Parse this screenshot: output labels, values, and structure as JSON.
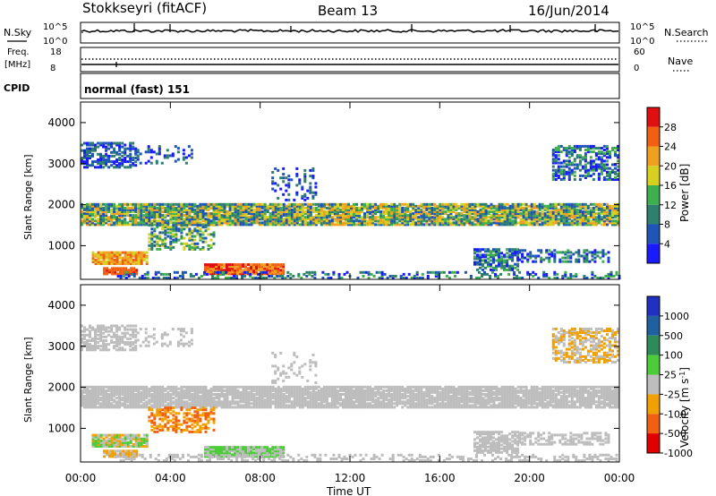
{
  "header": {
    "station": "Stokkseyri (fitACF)",
    "beam": "Beam 13",
    "date": "16/Jun/2014"
  },
  "strip_labels": {
    "nsky": "N.Sky",
    "nsearch": "N.Search",
    "freq": "Freq.",
    "mhz": "[MHz]",
    "nave": "Nave",
    "cpid": "CPID",
    "mode": "normal (fast) 151",
    "nsky_top": "10^5",
    "nsky_bot": "10^0",
    "nsearch_top": "10^5",
    "nsearch_bot": "10^0",
    "freq_top": "18",
    "freq_bot": "8",
    "nave_top": "60",
    "nave_bot": "0"
  },
  "colorbars": {
    "power_title": "Power [dB]",
    "velocity_title": "Velocity [m s",
    "velocity_exp": "-1",
    "velocity_close": "]"
  },
  "axes": {
    "ylabel": "Slant Range [km]",
    "xlabel": "Time UT"
  },
  "chart_data": [
    {
      "type": "heatmap",
      "name": "power",
      "x": [
        "00:00",
        "04:00",
        "08:00",
        "12:00",
        "16:00",
        "20:00",
        "00:00"
      ],
      "xlim": [
        0,
        24
      ],
      "ylim": [
        180,
        4500
      ],
      "yticks": [
        1000,
        2000,
        3000,
        4000
      ],
      "colorbar_ticks": [
        4,
        8,
        12,
        16,
        20,
        24,
        28
      ],
      "colorbar_colors": [
        "#1a1aff",
        "#1f55b7",
        "#2f7f6f",
        "#3fae4f",
        "#d8d020",
        "#f0a020",
        "#f06010",
        "#e01010"
      ]
    },
    {
      "type": "heatmap",
      "name": "velocity",
      "x": [
        "00:00",
        "04:00",
        "08:00",
        "12:00",
        "16:00",
        "20:00",
        "00:00"
      ],
      "xlim": [
        0,
        24
      ],
      "ylim": [
        180,
        4500
      ],
      "yticks": [
        1000,
        2000,
        3000,
        4000
      ],
      "colorbar_ticks": [
        1000,
        500,
        100,
        25,
        -25,
        -100,
        -500,
        -1000
      ],
      "colorbar_colors": [
        "#2030c0",
        "#1f60a0",
        "#2e8b57",
        "#4ecb3a",
        "#bdbdbd",
        "#f0a000",
        "#f06010",
        "#e00000"
      ]
    }
  ]
}
